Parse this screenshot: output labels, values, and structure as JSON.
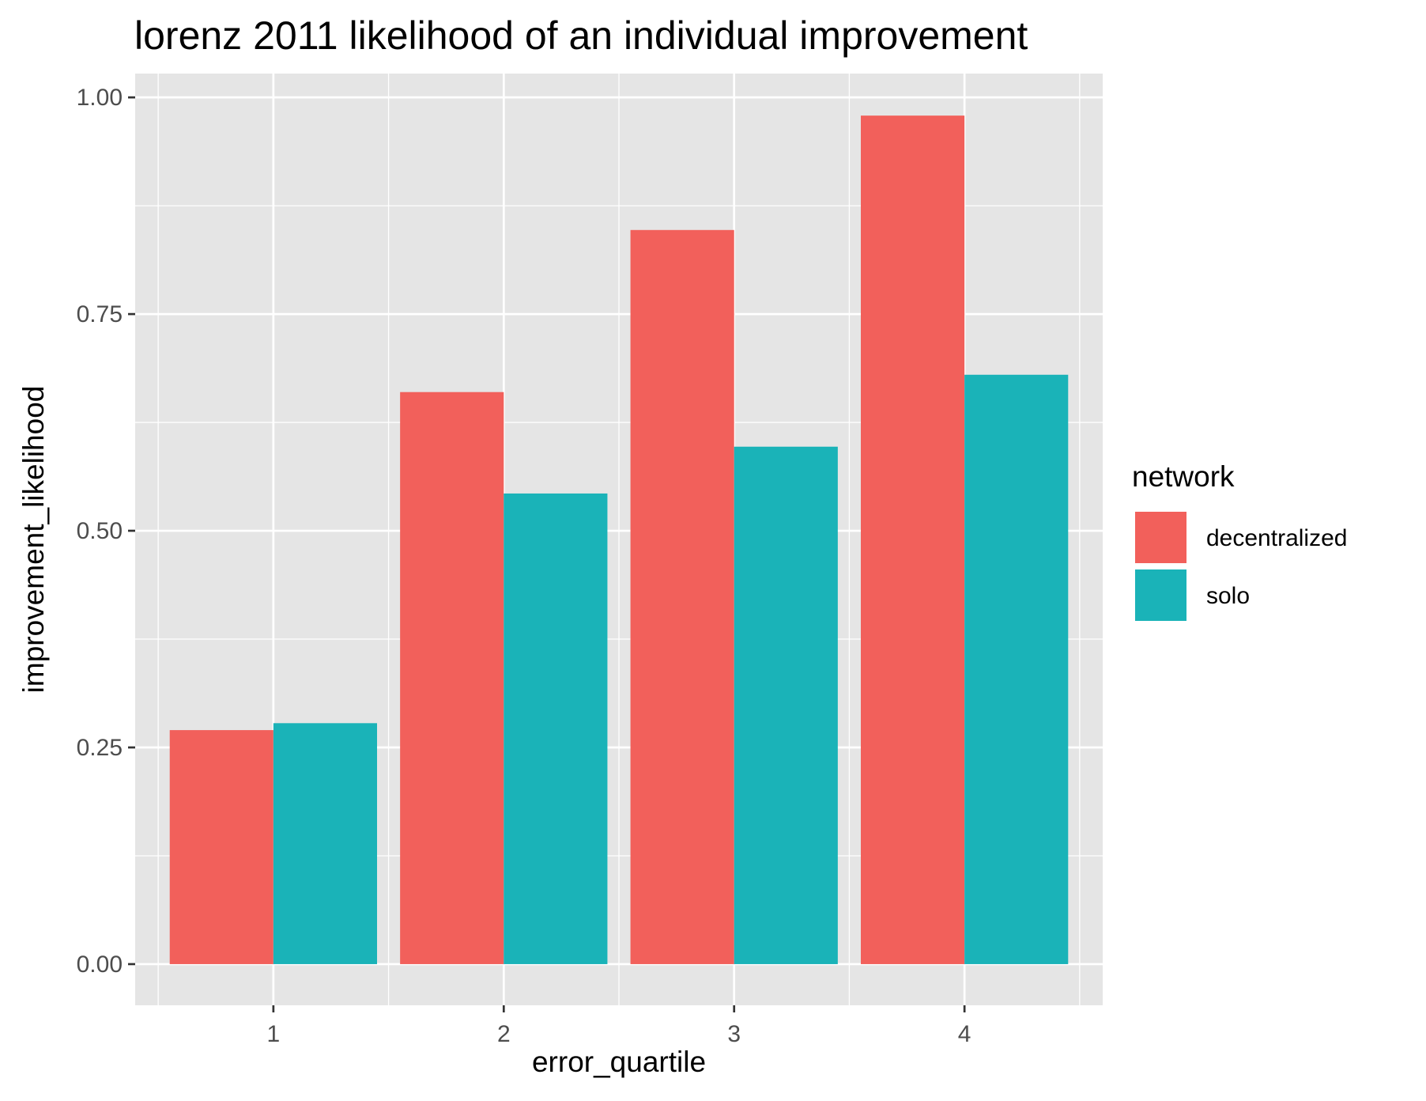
{
  "chart_data": {
    "type": "bar",
    "title": "lorenz 2011 likelihood of an individual improvement",
    "xlabel": "error_quartile",
    "ylabel": "improvement_likelihood",
    "categories": [
      "1",
      "2",
      "3",
      "4"
    ],
    "ylim": [
      -0.0475,
      1.0275
    ],
    "yticks": [
      0.0,
      0.25,
      0.5,
      0.75,
      1.0
    ],
    "ytick_labels": [
      "0.00",
      "0.25",
      "0.50",
      "0.75",
      "1.00"
    ],
    "grid": true,
    "legend_position": "right",
    "legend_title": "network",
    "series": [
      {
        "name": "decentralized",
        "color": "#F2605B",
        "values": [
          0.27,
          0.66,
          0.847,
          0.979
        ]
      },
      {
        "name": "solo",
        "color": "#1AB3B8",
        "values": [
          0.278,
          0.543,
          0.597,
          0.68
        ]
      }
    ],
    "colors": {
      "panel_background": "#E5E5E5",
      "grid": "#FFFFFF",
      "tick": "#333333"
    }
  }
}
